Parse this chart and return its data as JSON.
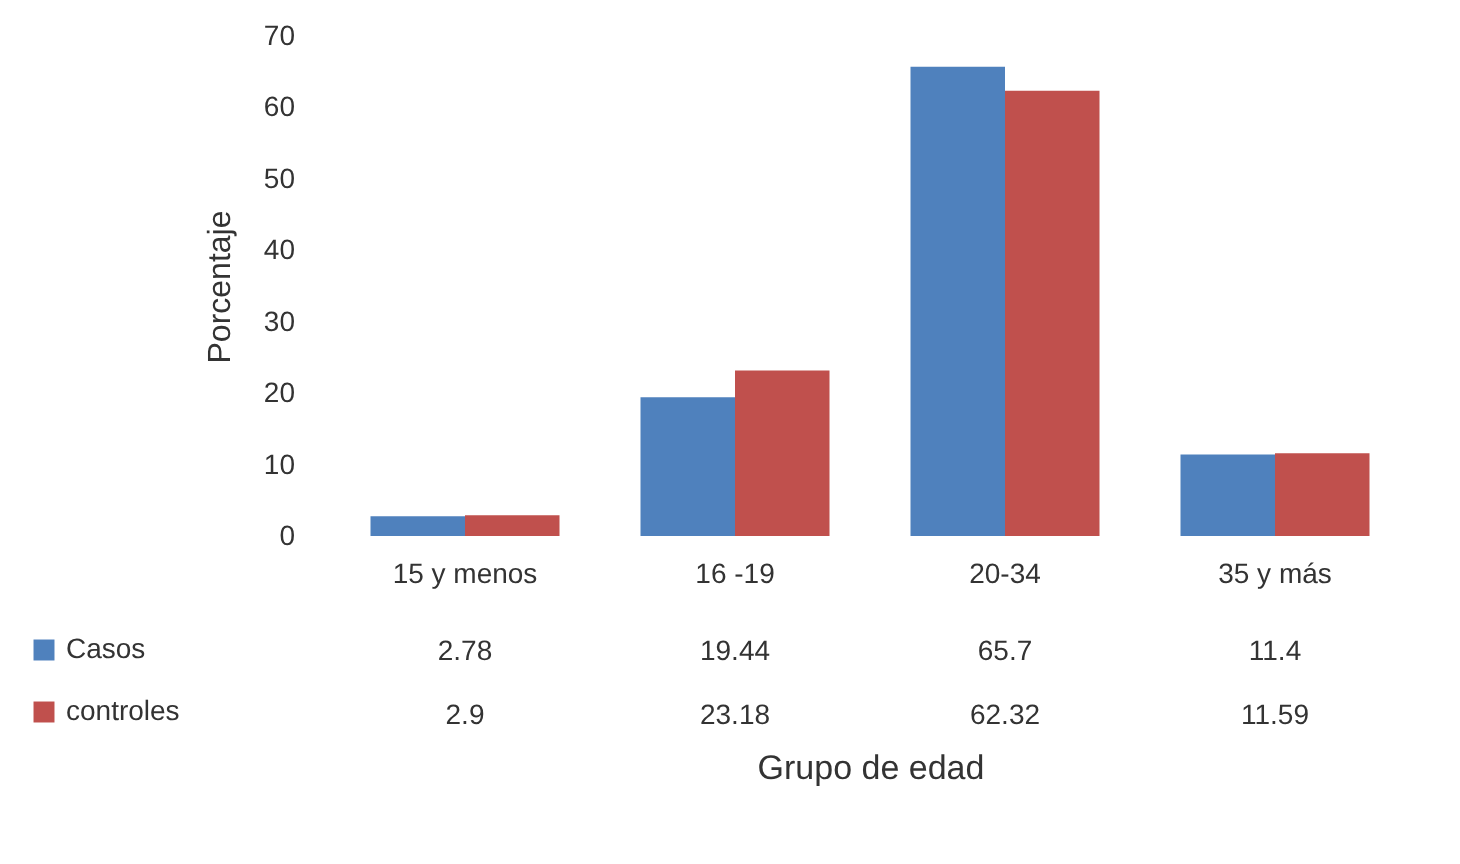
{
  "chart_data": {
    "type": "bar",
    "xlabel": "Grupo de edad",
    "ylabel": "Porcentaje",
    "categories": [
      "15 y menos",
      "16 -19",
      "20-34",
      "35 y más"
    ],
    "series": [
      {
        "name": "Casos",
        "color": "#4f81bd",
        "values": [
          2.78,
          19.44,
          65.7,
          11.4
        ]
      },
      {
        "name": "controles",
        "color": "#c0504d",
        "values": [
          2.9,
          23.18,
          62.32,
          11.59
        ]
      }
    ],
    "ylim": [
      0,
      70
    ],
    "yticks": [
      0,
      10,
      20,
      30,
      40,
      50,
      60,
      70
    ],
    "grid": false,
    "legend": "bottom left",
    "data_labels": true
  }
}
